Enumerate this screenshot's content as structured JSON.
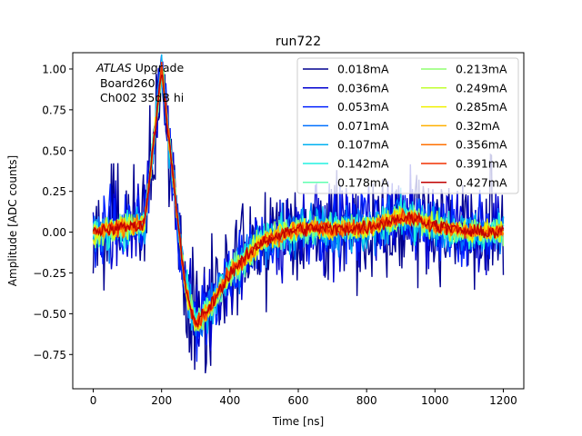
{
  "chart_data": {
    "type": "line",
    "title": "run722",
    "xlabel": "Time [ns]",
    "ylabel": "Amplitude [ADC counts]",
    "xlim": [
      -60,
      1260
    ],
    "ylim": [
      -0.96,
      1.1
    ],
    "xticks": [
      0,
      200,
      400,
      600,
      800,
      1000,
      1200
    ],
    "yticks": [
      -0.75,
      -0.5,
      -0.25,
      0.0,
      0.25,
      0.5,
      0.75,
      1.0
    ],
    "xtick_labels": [
      "0",
      "200",
      "400",
      "600",
      "800",
      "1000",
      "1200"
    ],
    "ytick_labels": [
      "−0.75",
      "−0.50",
      "−0.25",
      "0.00",
      "0.25",
      "0.50",
      "0.75",
      "1.00"
    ],
    "grid": false,
    "legend_loc": "top-right",
    "legend_columns": 2,
    "annotation": {
      "experiment": "ATLAS",
      "experiment_suffix": " Upgrade",
      "line2": " Board260",
      "line3": " Ch002 35dB hi"
    },
    "pulse_shape": {
      "description_points_x": [
        0,
        150,
        200,
        240,
        270,
        300,
        350,
        400,
        500,
        600,
        700,
        800,
        850,
        900,
        950,
        1000,
        1100,
        1200
      ],
      "description_points_y": [
        0.0,
        0.05,
        1.0,
        0.2,
        -0.35,
        -0.57,
        -0.43,
        -0.25,
        -0.05,
        0.02,
        0.02,
        0.03,
        0.06,
        0.09,
        0.08,
        0.04,
        0.0,
        0.0
      ],
      "baseline_noise_note": "noise amplitude decreases with current"
    },
    "series": [
      {
        "name": "0.018mA",
        "color": "#00008f",
        "noise": 0.25
      },
      {
        "name": "0.036mA",
        "color": "#0000d0",
        "noise": 0.18
      },
      {
        "name": "0.053mA",
        "color": "#0020ff",
        "noise": 0.14
      },
      {
        "name": "0.071mA",
        "color": "#0070ff",
        "noise": 0.11
      },
      {
        "name": "0.107mA",
        "color": "#00b0f0",
        "noise": 0.09
      },
      {
        "name": "0.142mA",
        "color": "#20f0e0",
        "noise": 0.075
      },
      {
        "name": "0.178mA",
        "color": "#60ffb0",
        "noise": 0.065
      },
      {
        "name": "0.213mA",
        "color": "#90ff70",
        "noise": 0.055
      },
      {
        "name": "0.249mA",
        "color": "#c0ff30",
        "noise": 0.05
      },
      {
        "name": "0.285mA",
        "color": "#f0f000",
        "noise": 0.045
      },
      {
        "name": "0.32mA",
        "color": "#ffb000",
        "noise": 0.04
      },
      {
        "name": "0.356mA",
        "color": "#ff7000",
        "noise": 0.035
      },
      {
        "name": "0.391mA",
        "color": "#f03000",
        "noise": 0.032
      },
      {
        "name": "0.427mA",
        "color": "#c00000",
        "noise": 0.03
      }
    ]
  }
}
